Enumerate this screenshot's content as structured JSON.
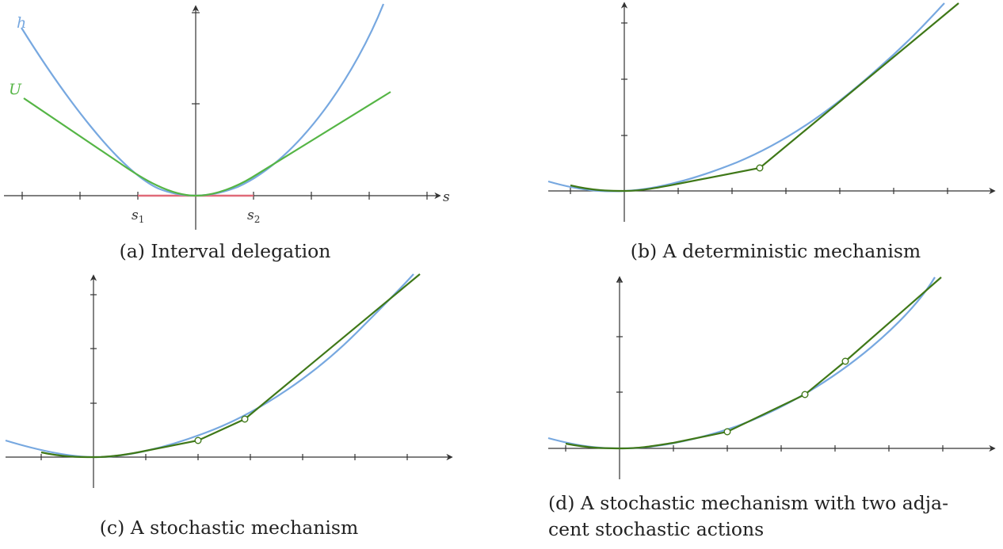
{
  "colors": {
    "h_curve": "#77a8e0",
    "u_curve": "#55b545",
    "mechanism": "#3f7818",
    "interval": "#e06a78",
    "axis": "#333333"
  },
  "panels": {
    "a": {
      "caption": "(a) Interval delegation",
      "label_h": "h",
      "label_u": "U",
      "label_axis": "s",
      "label_s1_base": "s",
      "label_s1_sub": "1",
      "label_s2_base": "s",
      "label_s2_sub": "2"
    },
    "b": {
      "caption": "(b) A deterministic mechanism"
    },
    "c": {
      "caption": "(c) A stochastic mechanism"
    },
    "d": {
      "caption_line1": "(d) A stochastic mechanism with two adja-",
      "caption_line2": "cent stochastic actions"
    }
  },
  "chart_data": [
    {
      "panel": "a",
      "type": "line",
      "xlabel": "s",
      "x_ticks": [
        -3,
        -2,
        -1,
        0,
        1,
        2,
        3,
        4
      ],
      "annotations": [
        "s1",
        "s2"
      ],
      "series": [
        {
          "name": "h",
          "x": [
            -3,
            -2,
            -1,
            0,
            1,
            2,
            3
          ],
          "y": [
            3.5,
            1.6,
            0.4,
            0,
            0.4,
            1.6,
            3.5
          ]
        },
        {
          "name": "U",
          "x": [
            -3,
            -1,
            0,
            1,
            3.4
          ],
          "y": [
            2.6,
            0.65,
            0,
            0.35,
            2.0
          ]
        }
      ],
      "interval": [
        -1,
        1
      ]
    },
    {
      "panel": "b",
      "type": "line",
      "series": [
        {
          "x": [
            0,
            1,
            2,
            3,
            4,
            5,
            6
          ],
          "y": [
            0,
            0.18,
            0.7,
            1.55,
            2.75,
            4.3,
            6.2
          ]
        },
        {
          "x": [
            0,
            2.5,
            6.2
          ],
          "y": [
            0,
            0.75,
            6.1
          ]
        }
      ],
      "marked_points_x": [
        2.5
      ]
    },
    {
      "panel": "c",
      "type": "line",
      "series": [
        {
          "x": [
            0,
            1,
            2,
            3,
            4,
            5,
            6
          ],
          "y": [
            0,
            0.18,
            0.7,
            1.55,
            2.75,
            4.3,
            6.2
          ]
        },
        {
          "x": [
            0,
            2,
            3,
            6.2
          ],
          "y": [
            0,
            0.55,
            1.2,
            6.1
          ]
        }
      ],
      "marked_points_x": [
        2,
        3
      ]
    },
    {
      "panel": "d",
      "type": "line",
      "series": [
        {
          "x": [
            0,
            1,
            2,
            3,
            4,
            5,
            6
          ],
          "y": [
            0,
            0.18,
            0.7,
            1.55,
            2.75,
            4.3,
            6.2
          ]
        },
        {
          "x": [
            0,
            2,
            3.5,
            4.4,
            5.4
          ],
          "y": [
            0,
            0.55,
            1.65,
            3.0,
            5.6
          ]
        }
      ],
      "marked_points_x": [
        2,
        3.5,
        4.4
      ]
    }
  ]
}
